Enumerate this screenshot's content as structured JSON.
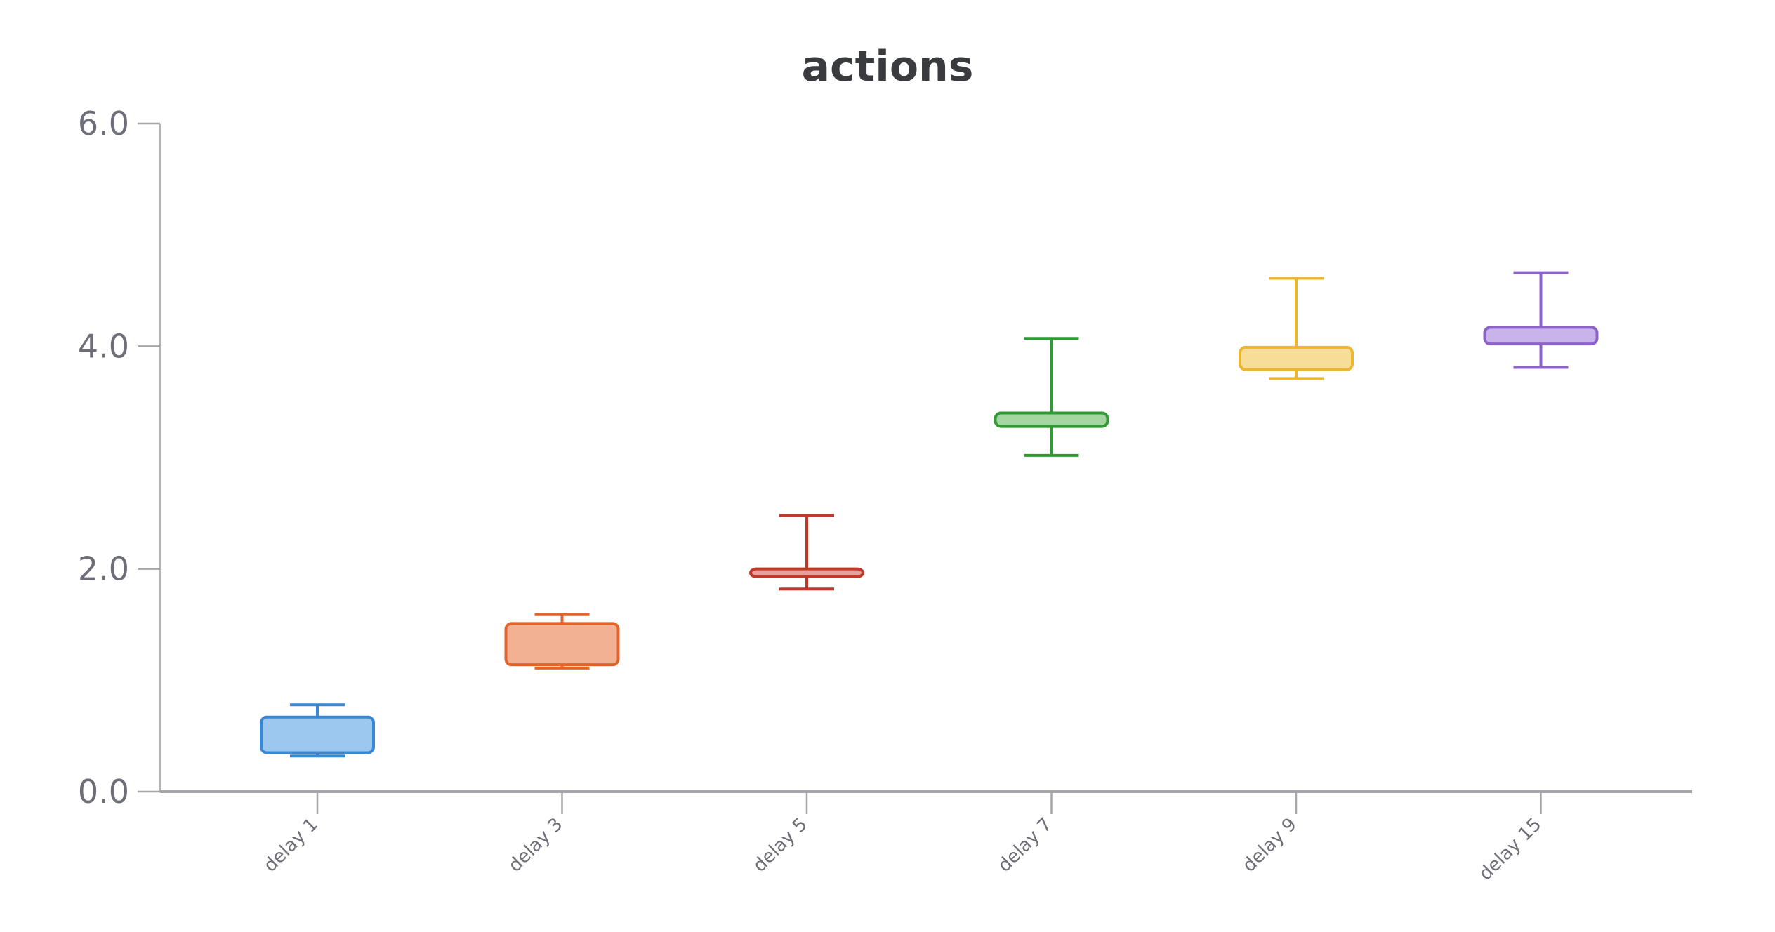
{
  "chart_data": {
    "type": "box",
    "title": "actions",
    "xlabel": "",
    "ylabel": "",
    "ylim": [
      0,
      6
    ],
    "yticks": [
      "0.0",
      "2.0",
      "4.0",
      "6.0"
    ],
    "grid": false,
    "legend": "none",
    "categories": [
      "delay 1",
      "delay 3",
      "delay 5",
      "delay 7",
      "delay 9",
      "delay 15"
    ],
    "series": [
      {
        "category": "delay 1",
        "whisker_low": 0.32,
        "q1": 0.35,
        "median": 0.5,
        "q3": 0.67,
        "whisker_high": 0.78,
        "color": "#3a87d4",
        "fill": "#9cc7ee"
      },
      {
        "category": "delay 3",
        "whisker_low": 1.11,
        "q1": 1.14,
        "median": 1.3,
        "q3": 1.51,
        "whisker_high": 1.59,
        "color": "#e2642a",
        "fill": "#f2b192"
      },
      {
        "category": "delay 5",
        "whisker_low": 1.82,
        "q1": 1.93,
        "median": 1.96,
        "q3": 2.0,
        "whisker_high": 2.48,
        "color": "#c0392b",
        "fill": "#e8a09a"
      },
      {
        "category": "delay 7",
        "whisker_low": 3.02,
        "q1": 3.28,
        "median": 3.33,
        "q3": 3.4,
        "whisker_high": 4.07,
        "color": "#2f9a33",
        "fill": "#a3d6a0"
      },
      {
        "category": "delay 9",
        "whisker_low": 3.71,
        "q1": 3.79,
        "median": 3.9,
        "q3": 3.99,
        "whisker_high": 4.61,
        "color": "#ecb62f",
        "fill": "#f6de99"
      },
      {
        "category": "delay 15",
        "whisker_low": 3.81,
        "q1": 4.02,
        "median": 4.1,
        "q3": 4.17,
        "whisker_high": 4.66,
        "color": "#8d63c9",
        "fill": "#c8b4ea"
      }
    ]
  }
}
